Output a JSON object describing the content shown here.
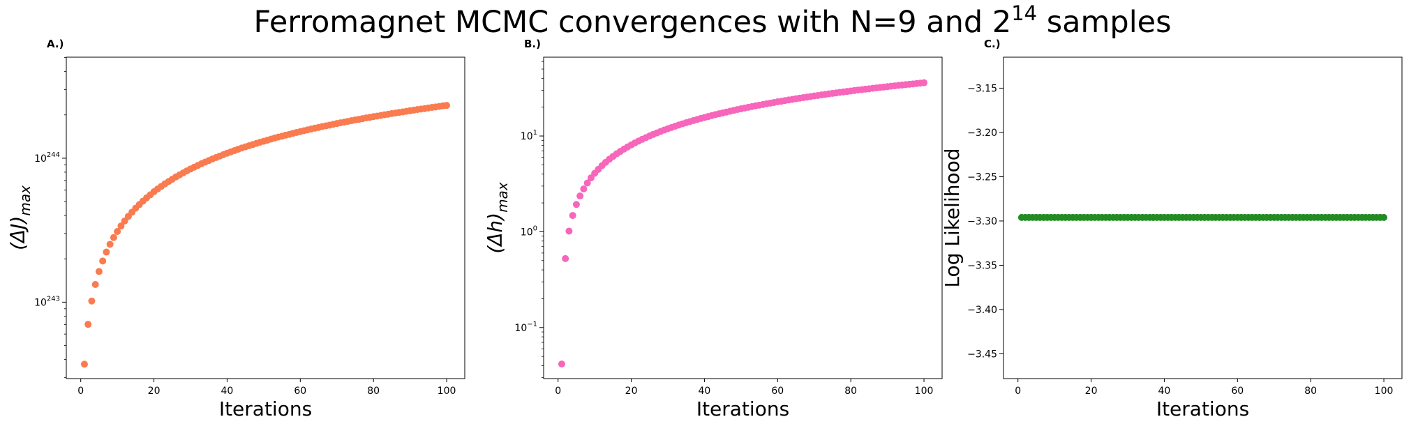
{
  "figure": {
    "title_main": "Ferromagnet MCMC convergences with N=9 and 2",
    "title_sup": "14",
    "title_tail": " samples"
  },
  "chart_data": [
    {
      "type": "scatter",
      "panel_label": "A.)",
      "xlabel": "Iterations",
      "ylabel_base": "(ΔJ)",
      "ylabel_sub": "max",
      "yscale": "log",
      "color": "#f97b4f",
      "xlim": [
        -3.95,
        104.95
      ],
      "ylim_log10": [
        242.469,
        244.702
      ],
      "xticks": [
        0,
        20,
        40,
        60,
        80,
        100
      ],
      "yticks_log10": [
        243,
        244
      ],
      "ytick_labels": [
        {
          "base": "10",
          "exp": "243"
        },
        {
          "base": "10",
          "exp": "244"
        }
      ],
      "series": [
        {
          "x": [
            1,
            2,
            3,
            4,
            5,
            6,
            7,
            8,
            9,
            10,
            11,
            12,
            13,
            14,
            15,
            16,
            17,
            18,
            19,
            20,
            21,
            22,
            23,
            24,
            25,
            26,
            27,
            28,
            29,
            30,
            31,
            32,
            33,
            34,
            35,
            36,
            37,
            38,
            39,
            40,
            41,
            42,
            43,
            44,
            45,
            46,
            47,
            48,
            49,
            50,
            51,
            52,
            53,
            54,
            55,
            56,
            57,
            58,
            59,
            60,
            61,
            62,
            63,
            64,
            65,
            66,
            67,
            68,
            69,
            70,
            71,
            72,
            73,
            74,
            75,
            76,
            77,
            78,
            79,
            80,
            81,
            82,
            83,
            84,
            85,
            86,
            87,
            88,
            89,
            90,
            91,
            92,
            93,
            94,
            95,
            96,
            97,
            98,
            99,
            100
          ],
          "y_log10": [
            242.569,
            242.846,
            243.008,
            243.123,
            243.213,
            243.286,
            243.348,
            243.402,
            243.449,
            243.491,
            243.529,
            243.564,
            243.596,
            243.625,
            243.653,
            243.678,
            243.702,
            243.725,
            243.746,
            243.767,
            243.786,
            243.804,
            243.822,
            243.838,
            243.854,
            243.87,
            243.884,
            243.898,
            243.912,
            243.925,
            243.938,
            243.95,
            243.962,
            243.973,
            243.984,
            243.995,
            244.005,
            244.015,
            244.025,
            244.035,
            244.044,
            244.053,
            244.062,
            244.071,
            244.079,
            244.087,
            244.095,
            244.103,
            244.111,
            244.118,
            244.125,
            244.133,
            244.14,
            244.147,
            244.153,
            244.16,
            244.166,
            244.173,
            244.179,
            244.185,
            244.191,
            244.197,
            244.203,
            244.209,
            244.214,
            244.22,
            244.225,
            244.23,
            244.236,
            244.241,
            244.246,
            244.251,
            244.256,
            244.261,
            244.266,
            244.27,
            244.275,
            244.28,
            244.284,
            244.289,
            244.293,
            244.297,
            244.302,
            244.306,
            244.31,
            244.314,
            244.318,
            244.322,
            244.326,
            244.33,
            244.334,
            244.338,
            244.342,
            244.345,
            244.349,
            244.353,
            244.356,
            244.36,
            244.364,
            244.367
          ]
        }
      ]
    },
    {
      "type": "scatter",
      "panel_label": "B.)",
      "xlabel": "Iterations",
      "ylabel_base": "(Δh)",
      "ylabel_sub": "max",
      "yscale": "log",
      "color": "#f766ba",
      "xlim": [
        -3.95,
        104.95
      ],
      "ylim_log10": [
        -1.533,
        1.823
      ],
      "xticks": [
        0,
        20,
        40,
        60,
        80,
        100
      ],
      "yticks_log10": [
        -1,
        0,
        1
      ],
      "ytick_labels": [
        {
          "base": "10",
          "exp": "−1"
        },
        {
          "base": "10",
          "exp": "0"
        },
        {
          "base": "10",
          "exp": "1"
        }
      ],
      "series": [
        {
          "x": [
            1,
            2,
            3,
            4,
            5,
            6,
            7,
            8,
            9,
            10,
            11,
            12,
            13,
            14,
            15,
            16,
            17,
            18,
            19,
            20,
            21,
            22,
            23,
            24,
            25,
            26,
            27,
            28,
            29,
            30,
            31,
            32,
            33,
            34,
            35,
            36,
            37,
            38,
            39,
            40,
            41,
            42,
            43,
            44,
            45,
            46,
            47,
            48,
            49,
            50,
            51,
            52,
            53,
            54,
            55,
            56,
            57,
            58,
            59,
            60,
            61,
            62,
            63,
            64,
            65,
            66,
            67,
            68,
            69,
            70,
            71,
            72,
            73,
            74,
            75,
            76,
            77,
            78,
            79,
            80,
            81,
            82,
            83,
            84,
            85,
            86,
            87,
            88,
            89,
            90,
            91,
            92,
            93,
            94,
            95,
            96,
            97,
            98,
            99,
            100
          ],
          "y_log10": [
            -1.381,
            -0.28,
            0.007,
            0.17,
            0.285,
            0.374,
            0.447,
            0.509,
            0.563,
            0.61,
            0.652,
            0.69,
            0.725,
            0.757,
            0.786,
            0.814,
            0.839,
            0.863,
            0.886,
            0.907,
            0.928,
            0.947,
            0.966,
            0.983,
            1.0,
            1.017,
            1.032,
            1.047,
            1.062,
            1.076,
            1.089,
            1.102,
            1.115,
            1.127,
            1.139,
            1.15,
            1.161,
            1.172,
            1.183,
            1.193,
            1.203,
            1.213,
            1.223,
            1.232,
            1.241,
            1.25,
            1.259,
            1.267,
            1.276,
            1.284,
            1.292,
            1.3,
            1.307,
            1.315,
            1.322,
            1.329,
            1.336,
            1.343,
            1.35,
            1.357,
            1.363,
            1.37,
            1.376,
            1.382,
            1.389,
            1.395,
            1.401,
            1.406,
            1.412,
            1.418,
            1.423,
            1.429,
            1.434,
            1.44,
            1.445,
            1.45,
            1.455,
            1.46,
            1.465,
            1.47,
            1.475,
            1.48,
            1.484,
            1.489,
            1.493,
            1.498,
            1.502,
            1.507,
            1.511,
            1.515,
            1.52,
            1.524,
            1.528,
            1.532,
            1.536,
            1.54,
            1.544,
            1.548,
            1.552,
            1.556
          ]
        }
      ]
    },
    {
      "type": "scatter",
      "panel_label": "C.)",
      "xlabel": "Iterations",
      "ylabel": "Log Likelihood",
      "yscale": "linear",
      "color": "#228b22",
      "xlim": [
        -3.95,
        104.95
      ],
      "ylim": [
        -3.478,
        -3.115
      ],
      "xticks": [
        0,
        20,
        40,
        60,
        80,
        100
      ],
      "yticks": [
        -3.45,
        -3.4,
        -3.35,
        -3.3,
        -3.25,
        -3.2,
        -3.15
      ],
      "ytick_labels": [
        "−3.45",
        "−3.40",
        "−3.35",
        "−3.30",
        "−3.25",
        "−3.20",
        "−3.15"
      ],
      "series": [
        {
          "x": [
            1,
            2,
            3,
            4,
            5,
            6,
            7,
            8,
            9,
            10,
            11,
            12,
            13,
            14,
            15,
            16,
            17,
            18,
            19,
            20,
            21,
            22,
            23,
            24,
            25,
            26,
            27,
            28,
            29,
            30,
            31,
            32,
            33,
            34,
            35,
            36,
            37,
            38,
            39,
            40,
            41,
            42,
            43,
            44,
            45,
            46,
            47,
            48,
            49,
            50,
            51,
            52,
            53,
            54,
            55,
            56,
            57,
            58,
            59,
            60,
            61,
            62,
            63,
            64,
            65,
            66,
            67,
            68,
            69,
            70,
            71,
            72,
            73,
            74,
            75,
            76,
            77,
            78,
            79,
            80,
            81,
            82,
            83,
            84,
            85,
            86,
            87,
            88,
            89,
            90,
            91,
            92,
            93,
            94,
            95,
            96,
            97,
            98,
            99,
            100
          ],
          "y": [
            -3.296,
            -3.296,
            -3.296,
            -3.296,
            -3.296,
            -3.296,
            -3.296,
            -3.296,
            -3.296,
            -3.296,
            -3.296,
            -3.296,
            -3.296,
            -3.296,
            -3.296,
            -3.296,
            -3.296,
            -3.296,
            -3.296,
            -3.296,
            -3.296,
            -3.296,
            -3.296,
            -3.296,
            -3.296,
            -3.296,
            -3.296,
            -3.296,
            -3.296,
            -3.296,
            -3.296,
            -3.296,
            -3.296,
            -3.296,
            -3.296,
            -3.296,
            -3.296,
            -3.296,
            -3.296,
            -3.296,
            -3.296,
            -3.296,
            -3.296,
            -3.296,
            -3.296,
            -3.296,
            -3.296,
            -3.296,
            -3.296,
            -3.296,
            -3.296,
            -3.296,
            -3.296,
            -3.296,
            -3.296,
            -3.296,
            -3.296,
            -3.296,
            -3.296,
            -3.296,
            -3.296,
            -3.296,
            -3.296,
            -3.296,
            -3.296,
            -3.296,
            -3.296,
            -3.296,
            -3.296,
            -3.296,
            -3.296,
            -3.296,
            -3.296,
            -3.296,
            -3.296,
            -3.296,
            -3.296,
            -3.296,
            -3.296,
            -3.296,
            -3.296,
            -3.296,
            -3.296,
            -3.296,
            -3.296,
            -3.296,
            -3.296,
            -3.296,
            -3.296,
            -3.296,
            -3.296,
            -3.296,
            -3.296,
            -3.296,
            -3.296,
            -3.296,
            -3.296,
            -3.296,
            -3.296,
            -3.296
          ]
        }
      ]
    }
  ]
}
